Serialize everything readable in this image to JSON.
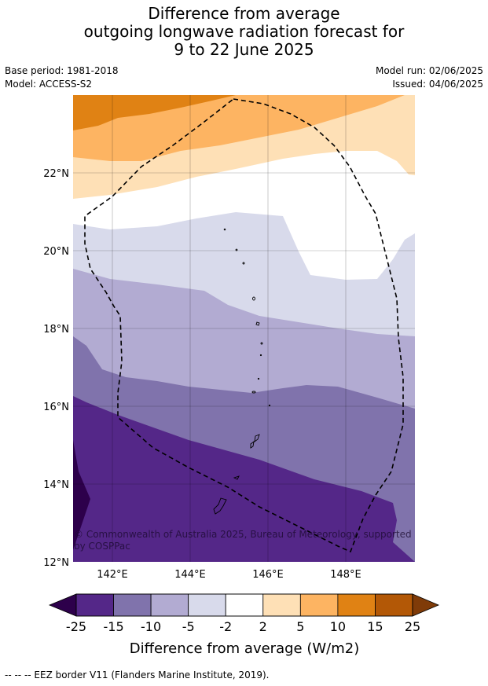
{
  "title": {
    "line1": "Difference from average",
    "line2": "outgoing longwave radiation forecast for",
    "line3": "9 to 22 June 2025"
  },
  "meta": {
    "base_period": "Base period: 1981-2018",
    "model": "Model: ACCESS-S2",
    "model_run": "Model run: 02/06/2025",
    "issued": "Issued: 04/06/2025"
  },
  "map": {
    "lat_labels": [
      "22°N",
      "20°N",
      "18°N",
      "16°N",
      "14°N",
      "12°N"
    ],
    "lon_labels": [
      "142°E",
      "144°E",
      "146°E",
      "148°E"
    ],
    "copyright": "© Commonwealth of Australia 2025, Bureau of Meteorology, supported by COSPPac",
    "copyright_line1": "© Commonwealth of Australia 2025, Bureau of Meteorology, supported",
    "copyright_line2": "by COSPPac",
    "eez_style": "dashed black line",
    "bands": [
      {
        "range": "5 to 10",
        "color": "#fdb462"
      },
      {
        "range": "10 to 15",
        "color": "#e08214"
      },
      {
        "range": "2 to 5",
        "color": "#fee0b6"
      },
      {
        "range": "-2 to 2",
        "color": "#ffffff"
      },
      {
        "range": "-5 to -2",
        "color": "#d8daeb"
      },
      {
        "range": "-10 to -5",
        "color": "#b2abd2"
      },
      {
        "range": "-15 to -10",
        "color": "#8073ac"
      },
      {
        "range": "-25 to -15",
        "color": "#542788"
      },
      {
        "range": "< -25",
        "color": "#2d004b"
      }
    ]
  },
  "colorbar": {
    "ticks": [
      "-25",
      "-15",
      "-10",
      "-5",
      "-2",
      "2",
      "5",
      "10",
      "15",
      "25"
    ],
    "colors": [
      "#542788",
      "#8073ac",
      "#b2abd2",
      "#d8daeb",
      "#ffffff",
      "#fee0b6",
      "#fdb462",
      "#e08214",
      "#b35806"
    ],
    "under_color": "#2d004b",
    "over_color": "#7f3b08",
    "label": "Difference from average (W/m2)"
  },
  "footnote": "--  --  -- EEZ border V11 (Flanders Marine Institute, 2019)."
}
